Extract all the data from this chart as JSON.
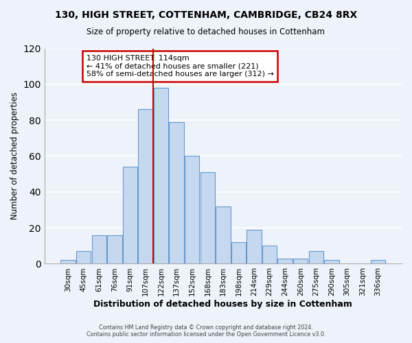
{
  "title1": "130, HIGH STREET, COTTENHAM, CAMBRIDGE, CB24 8RX",
  "title2": "Size of property relative to detached houses in Cottenham",
  "xlabel": "Distribution of detached houses by size in Cottenham",
  "ylabel": "Number of detached properties",
  "bar_color": "#c5d8f0",
  "bar_edge_color": "#6699cc",
  "background_color": "#eef2fb",
  "grid_color": "#ffffff",
  "categories": [
    "30sqm",
    "45sqm",
    "61sqm",
    "76sqm",
    "91sqm",
    "107sqm",
    "122sqm",
    "137sqm",
    "152sqm",
    "168sqm",
    "183sqm",
    "198sqm",
    "214sqm",
    "229sqm",
    "244sqm",
    "260sqm",
    "275sqm",
    "290sqm",
    "305sqm",
    "321sqm",
    "336sqm"
  ],
  "values": [
    2,
    7,
    16,
    16,
    54,
    86,
    98,
    79,
    60,
    51,
    32,
    12,
    19,
    10,
    3,
    3,
    7,
    2,
    0,
    0,
    2
  ],
  "vline_color": "#cc0000",
  "vline_pos": 5.47,
  "annotation_text": "130 HIGH STREET: 114sqm\n← 41% of detached houses are smaller (221)\n58% of semi-detached houses are larger (312) →",
  "annotation_box_color": "#ffffff",
  "annotation_box_edge_color": "#cc0000",
  "ylim": [
    0,
    120
  ],
  "yticks": [
    0,
    20,
    40,
    60,
    80,
    100,
    120
  ],
  "footer1": "Contains HM Land Registry data © Crown copyright and database right 2024.",
  "footer2": "Contains public sector information licensed under the Open Government Licence v3.0."
}
